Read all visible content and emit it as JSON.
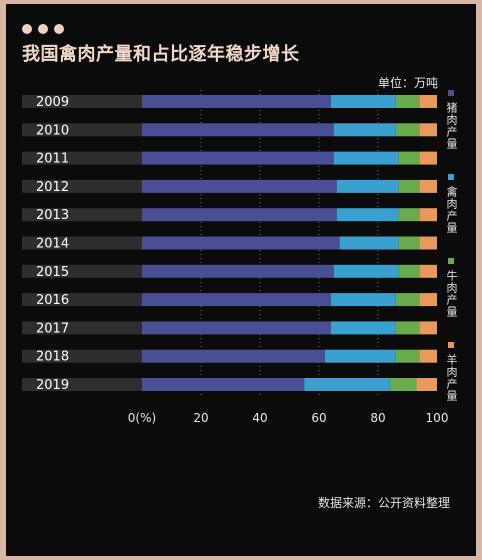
{
  "title": "我国禽肉产量和占比逐年稳步增长",
  "unit": "单位：万吨",
  "source": "数据来源：公开资料整理",
  "colors": {
    "background": "#0b0b0b",
    "label_band": "#2e2e2e",
    "pork": "#4a4e94",
    "poultry": "#3aa0cf",
    "beef": "#6aab4e",
    "mutton": "#e79a5b",
    "text": "#e6e6e6",
    "title": "#f0d9c8"
  },
  "chart_data": {
    "type": "bar",
    "orientation": "horizontal",
    "stacked": true,
    "title": "我国禽肉产量和占比逐年稳步增长",
    "unit": "单位：万吨",
    "xlim": [
      0,
      100
    ],
    "xticks": [
      "0(%)",
      "20",
      "40",
      "60",
      "80",
      "100"
    ],
    "grid": "vertical dotted",
    "legend_position": "right",
    "categories": [
      "2009",
      "2010",
      "2011",
      "2012",
      "2013",
      "2014",
      "2015",
      "2016",
      "2017",
      "2018",
      "2019"
    ],
    "series": [
      {
        "name": "猪肉产量",
        "color": "#4a4e94",
        "values": [
          64,
          65,
          65,
          66,
          66,
          67,
          65,
          64,
          64,
          62,
          55
        ]
      },
      {
        "name": "禽肉产量",
        "color": "#3aa0cf",
        "values": [
          22,
          21,
          22,
          21,
          21,
          20,
          22,
          22,
          22,
          24,
          29
        ]
      },
      {
        "name": "牛肉产量",
        "color": "#6aab4e",
        "values": [
          8,
          8,
          7,
          7,
          7,
          7,
          7,
          8,
          8,
          8,
          9
        ]
      },
      {
        "name": "羊肉产量",
        "color": "#e79a5b",
        "values": [
          6,
          6,
          6,
          6,
          6,
          6,
          6,
          6,
          6,
          6,
          7
        ]
      }
    ]
  }
}
